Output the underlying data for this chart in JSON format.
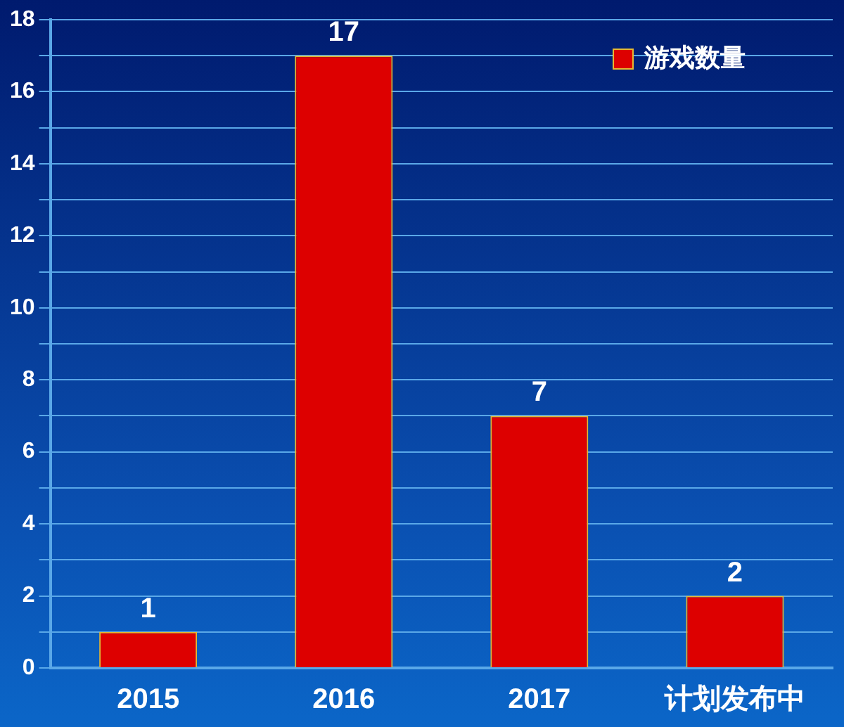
{
  "chart_data": {
    "type": "bar",
    "categories": [
      "2015",
      "2016",
      "2017",
      "计划发布中"
    ],
    "series": [
      {
        "name": "游戏数量",
        "color": "#dd0000",
        "values": [
          1,
          17,
          7,
          2
        ]
      }
    ],
    "ylim": [
      0,
      18
    ],
    "yticks": [
      0,
      {
        "value": 1,
        "label": null
      },
      2,
      {
        "value": 3,
        "label": null
      },
      4,
      {
        "value": 5,
        "label": null
      },
      6,
      {
        "value": 7,
        "label": null
      },
      8,
      {
        "value": 9,
        "label": null
      },
      10,
      {
        "value": 11,
        "label": null
      },
      12,
      {
        "value": 13,
        "label": null
      },
      14,
      {
        "value": 15,
        "label": null
      },
      16,
      {
        "value": 17,
        "label": null
      },
      18
    ],
    "grid": "y",
    "legend": "top right",
    "data_labels": true
  }
}
